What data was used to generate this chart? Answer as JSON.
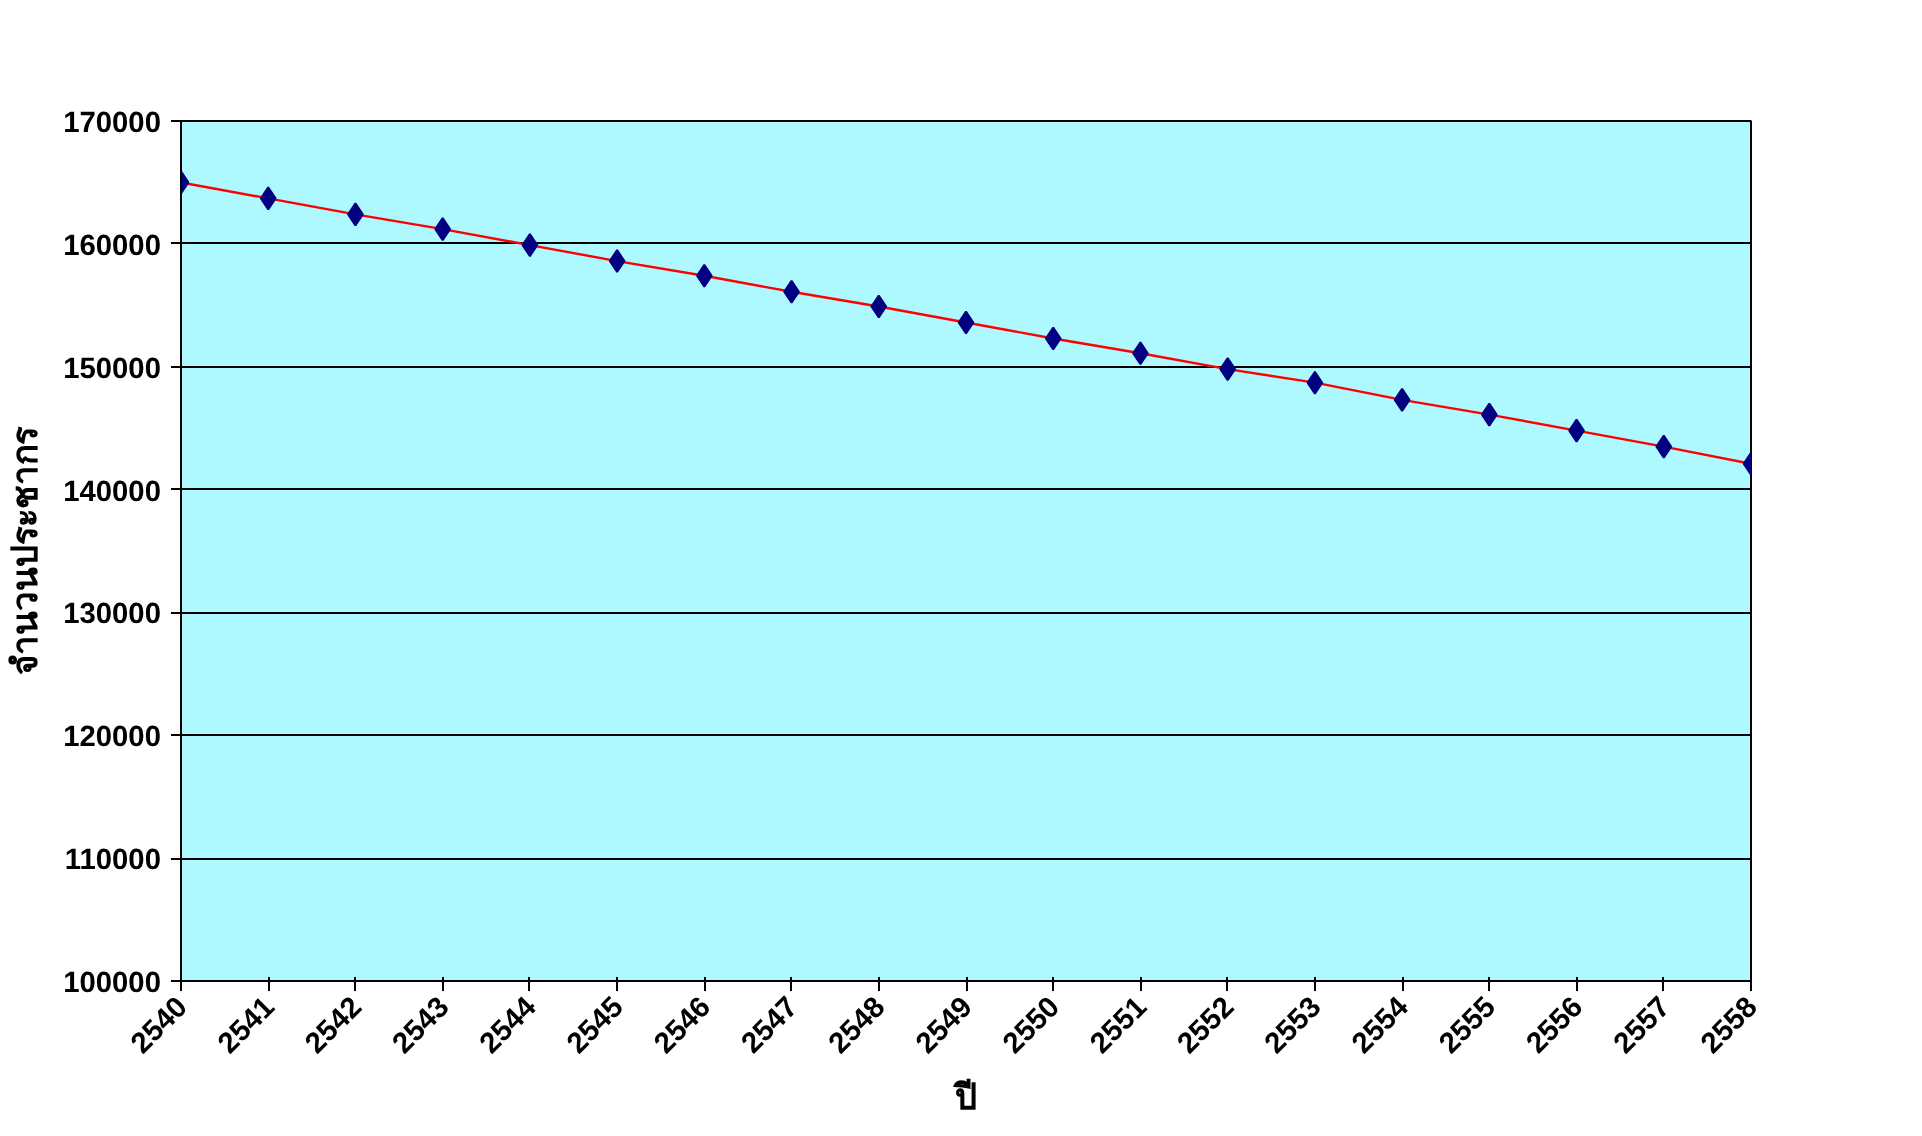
{
  "chart_data": {
    "type": "line",
    "xlabel": "ปี",
    "ylabel": "จำนวนประชากร",
    "categories": [
      "2540",
      "2541",
      "2542",
      "2543",
      "2544",
      "2545",
      "2546",
      "2547",
      "2548",
      "2549",
      "2550",
      "2551",
      "2552",
      "2553",
      "2554",
      "2555",
      "2556",
      "2557",
      "2558"
    ],
    "series": [
      {
        "color": "#ff0000",
        "colors": [
          "#000080",
          "#000080",
          "#000080",
          "#000080",
          "#000080",
          "#000080",
          "#000080",
          "#000080",
          "#000080",
          "#000080",
          "#000080",
          "#000080",
          "#000080",
          "#000080",
          "#000080",
          "#000080",
          "#000080",
          "#000080",
          "#000080"
        ],
        "values": [
          165000,
          163700,
          162400,
          161200,
          159900,
          158600,
          157400,
          156100,
          154900,
          153600,
          152300,
          151100,
          149800,
          148700,
          147300,
          146100,
          144800,
          143500,
          142100
        ]
      }
    ],
    "ylim": [
      100000,
      170000
    ],
    "yticks": [
      100000,
      110000,
      120000,
      130000,
      140000,
      150000,
      160000,
      170000
    ],
    "grid": "y",
    "marker": "diamond",
    "line_style": "solid"
  }
}
